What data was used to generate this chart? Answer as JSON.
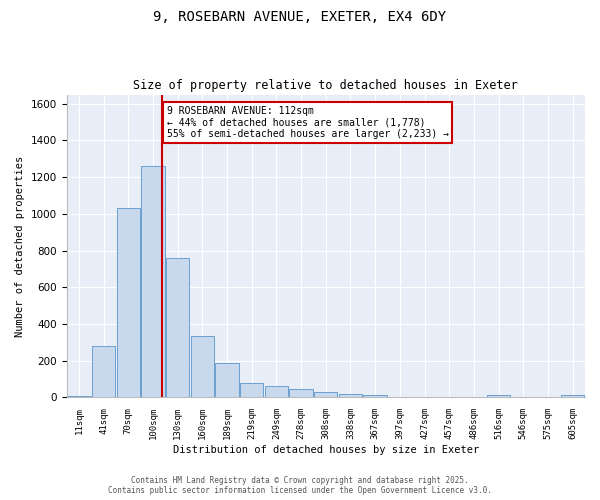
{
  "title1": "9, ROSEBARN AVENUE, EXETER, EX4 6DY",
  "title2": "Size of property relative to detached houses in Exeter",
  "xlabel": "Distribution of detached houses by size in Exeter",
  "ylabel": "Number of detached properties",
  "categories": [
    "11sqm",
    "41sqm",
    "70sqm",
    "100sqm",
    "130sqm",
    "160sqm",
    "189sqm",
    "219sqm",
    "249sqm",
    "278sqm",
    "308sqm",
    "338sqm",
    "367sqm",
    "397sqm",
    "427sqm",
    "457sqm",
    "486sqm",
    "516sqm",
    "546sqm",
    "575sqm",
    "605sqm"
  ],
  "values": [
    10,
    280,
    1030,
    1260,
    760,
    335,
    190,
    80,
    65,
    45,
    30,
    20,
    15,
    5,
    0,
    0,
    0,
    15,
    0,
    0,
    15
  ],
  "bar_color": "#c9d9ed",
  "bar_edge_color": "#6a9fd0",
  "vline_x": 3.37,
  "vline_color": "#cc0000",
  "annotation_text": "9 ROSEBARN AVENUE: 112sqm\n← 44% of detached houses are smaller (1,778)\n55% of semi-detached houses are larger (2,233) →",
  "annotation_box_color": "#ffffff",
  "annotation_box_edge": "#cc0000",
  "ylim": [
    0,
    1650
  ],
  "yticks": [
    0,
    200,
    400,
    600,
    800,
    1000,
    1200,
    1400,
    1600
  ],
  "bg_color": "#e8eef8",
  "footer1": "Contains HM Land Registry data © Crown copyright and database right 2025.",
  "footer2": "Contains public sector information licensed under the Open Government Licence v3.0."
}
